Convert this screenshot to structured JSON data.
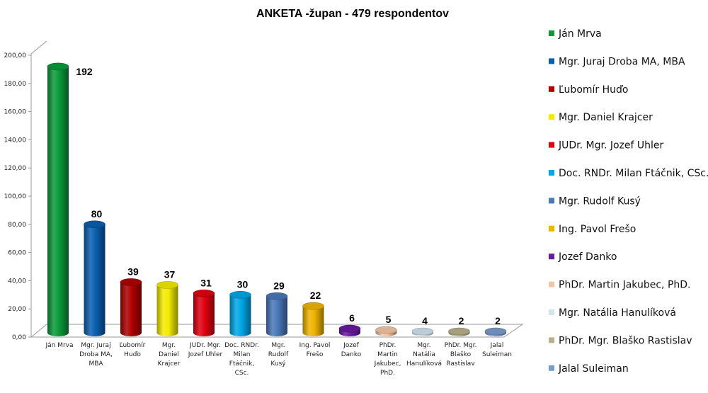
{
  "chart_data": {
    "type": "bar",
    "title": "ANKETA -župan - 479 respondentov",
    "xlabel": "",
    "ylabel": "",
    "ylim": [
      0,
      200
    ],
    "yticks": [
      "0,00",
      "20,00",
      "40,00",
      "60,00",
      "80,00",
      "100,00",
      "120,00",
      "140,00",
      "160,00",
      "180,00",
      "200,00"
    ],
    "grid": false,
    "legend_position": "right",
    "categories": [
      [
        "Ján Mrva"
      ],
      [
        "Mgr. Juraj",
        "Droba MA,",
        "MBA"
      ],
      [
        "Ľubomír",
        "Huďo"
      ],
      [
        "Mgr.",
        "Daniel",
        "Krajcer"
      ],
      [
        "JUDr. Mgr.",
        "Jozef Uhler"
      ],
      [
        "Doc. RNDr.",
        "Milan",
        "Ftáčnik,",
        "CSc."
      ],
      [
        "Mgr.",
        "Rudolf",
        "Kusý"
      ],
      [
        "Ing. Pavol",
        "Frešo"
      ],
      [
        "Jozef",
        "Danko"
      ],
      [
        "PhDr.",
        "Martin",
        "Jakubec,",
        "PhD."
      ],
      [
        "Mgr.",
        "Natália",
        "Hanulíková"
      ],
      [
        "PhDr. Mgr.",
        "Blaško",
        "Rastislav"
      ],
      [
        "Jalal",
        "Suleiman"
      ]
    ],
    "values": [
      192,
      80,
      39,
      37,
      31,
      30,
      29,
      22,
      6,
      5,
      4,
      2,
      2
    ],
    "data_labels": [
      "192",
      "80",
      "39",
      "37",
      "31",
      "30",
      "29",
      "22",
      "6",
      "5",
      "4",
      "2",
      "2"
    ],
    "legend": [
      "Ján Mrva",
      "Mgr. Juraj Droba MA, MBA",
      "Ľubomír Huďo",
      "Mgr. Daniel Krajcer",
      "JUDr. Mgr. Jozef Uhler",
      "Doc. RNDr. Milan Ftáčnik, CSc.",
      "Mgr. Rudolf Kusý",
      "Ing. Pavol Frešo",
      "Jozef Danko",
      "PhDr. Martin Jakubec, PhD.",
      "Mgr. Natália Hanulíková",
      "PhDr. Mgr. Blaško Rastislav",
      "Jalal Suleiman"
    ],
    "colors": [
      "#0a9a3a",
      "#0a5fb0",
      "#b00000",
      "#f4ec00",
      "#e00010",
      "#00a8e8",
      "#4a78b8",
      "#f0b400",
      "#6a1aa0",
      "#f2c6a4",
      "#d2e4f0",
      "#b8b08a",
      "#7a9ccc"
    ]
  }
}
